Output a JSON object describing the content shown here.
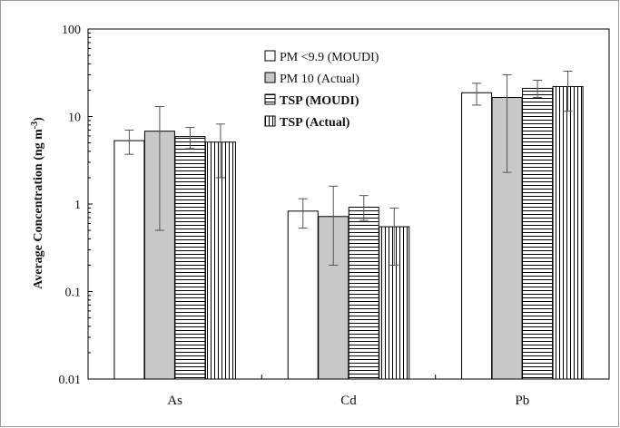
{
  "chart_data": {
    "type": "bar",
    "yscale": "log",
    "ylim": [
      0.01,
      100
    ],
    "yticks": [
      "0.01",
      "0.1",
      "1",
      "10",
      "100"
    ],
    "ylabel": {
      "main": "Average Concentration (ng m",
      "sup": "-3",
      "close": ")"
    },
    "xlabel": "",
    "grid": false,
    "legend_position": "top-center",
    "categories": [
      "As",
      "Cd",
      "Pb"
    ],
    "series": [
      {
        "name": "PM <9.9 (MOUDI)",
        "values": [
          5.3,
          0.83,
          18.7
        ],
        "err_low": [
          3.7,
          0.53,
          13.5
        ],
        "err_high": [
          7.0,
          1.15,
          24.0
        ],
        "pattern": "white",
        "legend_bold": false
      },
      {
        "name": "PM 10 (Actual)",
        "values": [
          6.8,
          0.72,
          16.5
        ],
        "err_low": [
          0.5,
          0.2,
          2.3
        ],
        "err_high": [
          13.0,
          1.6,
          30.0
        ],
        "pattern": "gray",
        "legend_bold": false
      },
      {
        "name": "TSP (MOUDI)",
        "values": [
          5.9,
          0.92,
          21.0
        ],
        "err_low": [
          4.3,
          0.65,
          16.5
        ],
        "err_high": [
          7.5,
          1.25,
          26.0
        ],
        "pattern": "hlines",
        "legend_bold": true
      },
      {
        "name": "TSP (Actual)",
        "values": [
          5.1,
          0.55,
          22.0
        ],
        "err_low": [
          2.0,
          0.2,
          11.5
        ],
        "err_high": [
          8.2,
          0.9,
          33.0
        ],
        "pattern": "vlines",
        "legend_bold": true
      }
    ],
    "colors": {
      "gray": "#c8c8c8",
      "stroke": "#000000",
      "error": "#555555"
    }
  }
}
